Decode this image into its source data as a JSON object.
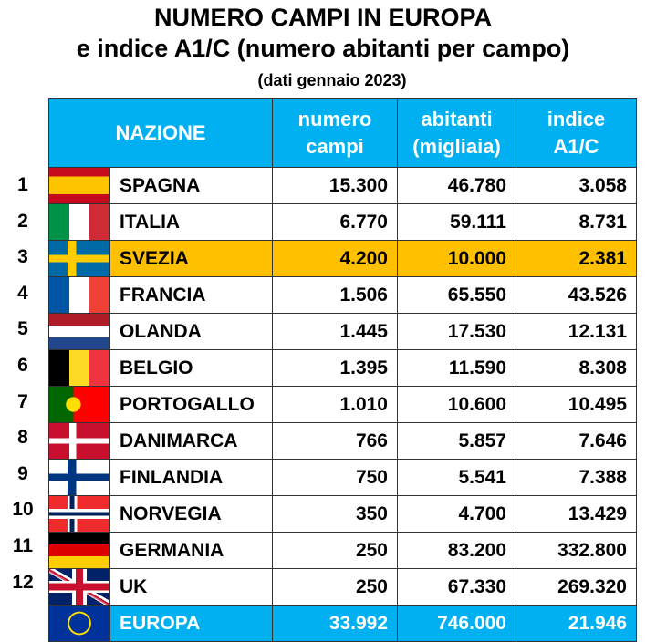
{
  "title": {
    "line1": "NUMERO CAMPI IN EUROPA",
    "line2": "e indice A1/C (numero abitanti per campo)",
    "line3": "(dati gennaio 2023)"
  },
  "headers": {
    "nazione": "NAZIONE",
    "campi": [
      "numero",
      "campi"
    ],
    "abitanti": [
      "abitanti",
      "(migliaia)"
    ],
    "indice": [
      "indice",
      "A1/C"
    ]
  },
  "rows": [
    {
      "rank": "1",
      "flag": "spain",
      "name": "SPAGNA",
      "campi": "15.300",
      "abitanti": "46.780",
      "indice": "3.058"
    },
    {
      "rank": "2",
      "flag": "italy",
      "name": "ITALIA",
      "campi": "6.770",
      "abitanti": "59.111",
      "indice": "8.731"
    },
    {
      "rank": "3",
      "flag": "sweden",
      "name": "SVEZIA",
      "campi": "4.200",
      "abitanti": "10.000",
      "indice": "2.381",
      "highlight": true
    },
    {
      "rank": "4",
      "flag": "france",
      "name": "FRANCIA",
      "campi": "1.506",
      "abitanti": "65.550",
      "indice": "43.526"
    },
    {
      "rank": "5",
      "flag": "netherlands",
      "name": "OLANDA",
      "campi": "1.445",
      "abitanti": "17.530",
      "indice": "12.131"
    },
    {
      "rank": "6",
      "flag": "belgium",
      "name": "BELGIO",
      "campi": "1.395",
      "abitanti": "11.590",
      "indice": "8.308"
    },
    {
      "rank": "7",
      "flag": "portugal",
      "name": "PORTOGALLO",
      "campi": "1.010",
      "abitanti": "10.600",
      "indice": "10.495"
    },
    {
      "rank": "8",
      "flag": "denmark",
      "name": "DANIMARCA",
      "campi": "766",
      "abitanti": "5.857",
      "indice": "7.646"
    },
    {
      "rank": "9",
      "flag": "finland",
      "name": "FINLANDIA",
      "campi": "750",
      "abitanti": "5.541",
      "indice": "7.388"
    },
    {
      "rank": "10",
      "flag": "norway",
      "name": "NORVEGIA",
      "campi": "350",
      "abitanti": "4.700",
      "indice": "13.429"
    },
    {
      "rank": "11",
      "flag": "germany",
      "name": "GERMANIA",
      "campi": "250",
      "abitanti": "83.200",
      "indice": "332.800"
    },
    {
      "rank": "12",
      "flag": "uk",
      "name": "UK",
      "campi": "250",
      "abitanti": "67.330",
      "indice": "269.320"
    }
  ],
  "total": {
    "flag": "eu",
    "name": "EUROPA",
    "campi": "33.992",
    "abitanti": "746.000",
    "indice": "21.946"
  },
  "colors": {
    "header": "#00b0f0",
    "highlight": "#ffc000"
  }
}
